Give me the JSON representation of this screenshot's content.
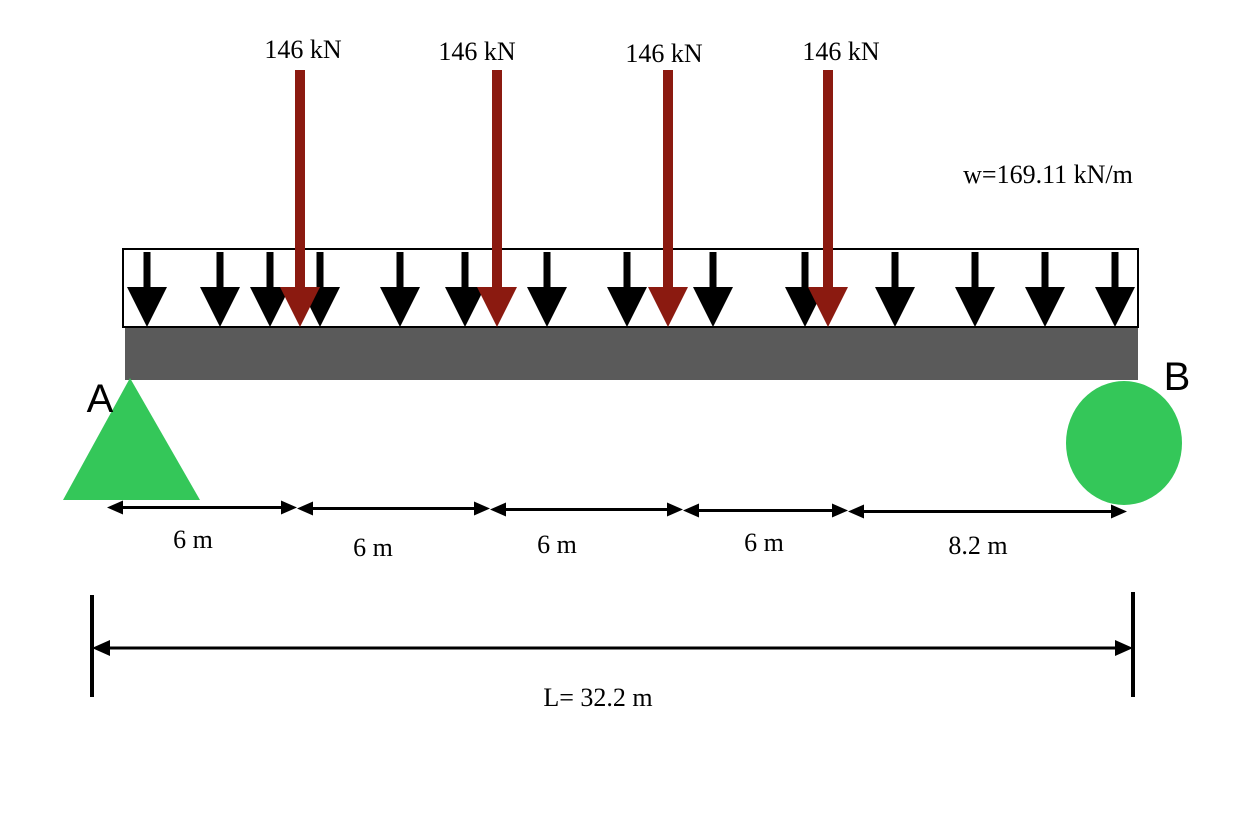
{
  "point_loads": [
    {
      "label": "146 kN"
    },
    {
      "label": "146 kN"
    },
    {
      "label": "146 kN"
    },
    {
      "label": "146 kN"
    }
  ],
  "distributed_load": {
    "label": "w=169.11 kN/m"
  },
  "supports": {
    "a": {
      "label": "A"
    },
    "b": {
      "label": "B"
    }
  },
  "spans": [
    "6 m",
    "6 m",
    "6 m",
    "6 m",
    "8.2 m"
  ],
  "total_length": "L= 32.2 m"
}
